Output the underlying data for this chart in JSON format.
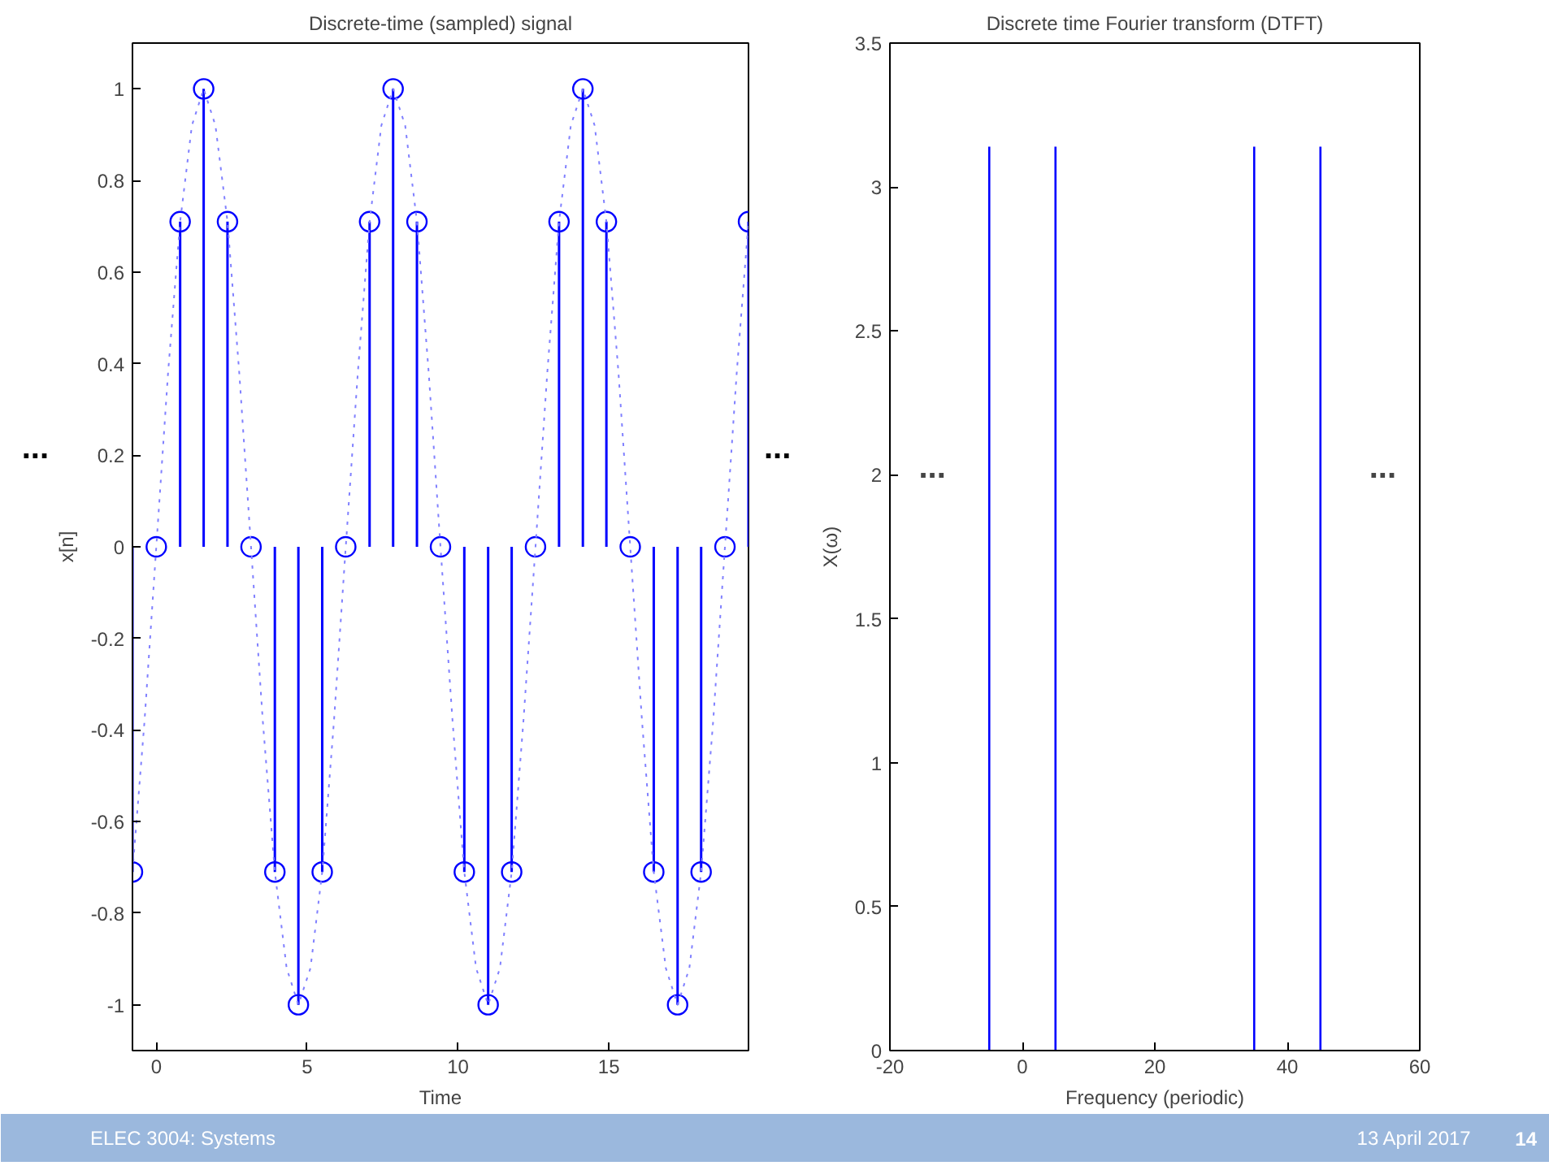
{
  "chart_data": [
    {
      "type": "lollipop",
      "title": "Discrete-time (sampled) signal",
      "xlabel": "Time",
      "ylabel": "x[n]",
      "xlim": [
        -0.79,
        19.63
      ],
      "ylim": [
        -1.1,
        1.1
      ],
      "xticks": [
        0,
        5,
        10,
        15
      ],
      "yticks": [
        -1,
        -0.8,
        -0.6,
        -0.4,
        -0.2,
        0,
        0.2,
        0.4,
        0.6,
        0.8,
        1
      ],
      "grid": false,
      "annotations": [
        "...",
        "..."
      ],
      "series": [
        {
          "type": "lollipop",
          "color": "#0000ff",
          "marker": "circle",
          "x": [
            -0.79,
            0,
            0.79,
            1.57,
            2.36,
            3.14,
            3.93,
            4.71,
            5.5,
            6.28,
            7.07,
            7.85,
            8.64,
            9.42,
            10.21,
            11.0,
            11.78,
            12.57,
            13.35,
            14.14,
            14.92,
            15.71,
            16.49,
            17.28,
            18.06,
            18.85,
            19.63
          ],
          "values": [
            -0.71,
            0,
            0.71,
            1,
            0.71,
            0,
            -0.71,
            -1,
            -0.71,
            0,
            0.71,
            1,
            0.71,
            0,
            -0.71,
            -1,
            -0.71,
            0,
            0.71,
            1,
            0.71,
            0,
            -0.71,
            -1,
            -0.71,
            0,
            0.71
          ]
        },
        {
          "type": "line",
          "color": "#8080ff",
          "line_style": "dotted",
          "x": [
            -0.79,
            -0.39,
            0,
            0.39,
            0.79,
            1.18,
            1.57,
            1.96,
            2.36,
            2.75,
            3.14,
            3.53,
            3.93,
            4.32,
            4.71,
            5.11,
            5.5,
            5.89,
            6.28,
            6.68,
            7.07,
            7.46,
            7.85,
            8.25,
            8.64,
            9.03,
            9.42,
            9.82,
            10.21,
            10.6,
            11.0,
            11.39,
            11.78,
            12.17,
            12.57,
            12.96,
            13.35,
            13.74,
            14.14,
            14.53,
            14.92,
            15.32,
            15.71,
            16.1,
            16.49,
            16.89,
            17.28,
            17.67,
            18.06,
            18.46,
            18.85,
            19.24,
            19.63
          ],
          "values": [
            -0.71,
            -0.38,
            0,
            0.38,
            0.71,
            0.92,
            1,
            0.92,
            0.71,
            0.38,
            0,
            -0.38,
            -0.71,
            -0.92,
            -1,
            -0.92,
            -0.71,
            -0.38,
            0,
            0.38,
            0.71,
            0.92,
            1,
            0.92,
            0.71,
            0.38,
            0,
            -0.38,
            -0.71,
            -0.92,
            -1,
            -0.92,
            -0.71,
            -0.38,
            0,
            0.38,
            0.71,
            0.92,
            1,
            0.92,
            0.71,
            0.38,
            0,
            -0.38,
            -0.71,
            -0.92,
            -1,
            -0.92,
            -0.71,
            -0.38,
            0,
            0.38,
            0.71
          ]
        }
      ]
    },
    {
      "type": "lollipop",
      "title": "Discrete time Fourier transform (DTFT)",
      "xlabel": "Frequency (periodic)",
      "ylabel": "X(ω)",
      "xlim": [
        -20,
        60
      ],
      "ylim": [
        0,
        3.5
      ],
      "xticks": [
        -20,
        0,
        20,
        40,
        60
      ],
      "yticks": [
        0,
        0.5,
        1,
        1.5,
        2,
        2.5,
        3,
        3.5
      ],
      "grid": false,
      "annotations": [
        "...",
        "..."
      ],
      "series": [
        {
          "type": "bar",
          "color": "#0000ff",
          "x": [
            -5,
            5,
            35,
            45
          ],
          "values": [
            3.14,
            3.14,
            3.14,
            3.14
          ]
        }
      ]
    },
    {
      "type": "other",
      "annotations": [
        "ELEC 3004: Systems",
        "13 April 2017",
        "14"
      ]
    }
  ]
}
